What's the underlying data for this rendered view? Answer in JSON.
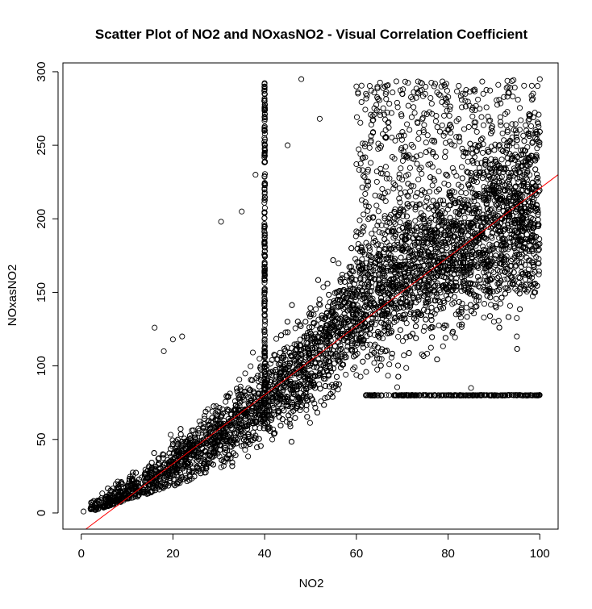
{
  "chart_data": {
    "type": "scatter",
    "title": "Scatter Plot of NO2 and NOxasNO2 - Visual Correlation Coefficient",
    "xlabel": "NO2",
    "ylabel": "NOxasNO2",
    "xlim": [
      -4,
      104
    ],
    "ylim": [
      -11,
      306
    ],
    "xticks": [
      0,
      20,
      40,
      60,
      80,
      100
    ],
    "yticks": [
      0,
      50,
      100,
      150,
      200,
      250,
      300
    ],
    "grid": false,
    "legend": "none",
    "point_color": "#000000",
    "fit_line": {
      "color": "#ff0000",
      "from": [
        1,
        -11
      ],
      "to": [
        104,
        230
      ]
    },
    "features": {
      "main_cloud": {
        "x_range": [
          2,
          100
        ],
        "y_min": 2,
        "y_max": 295
      },
      "vertical_band": {
        "x": 40,
        "y_range": [
          60,
          295
        ]
      },
      "horizontal_band": {
        "y": 80,
        "x_range": [
          62,
          100
        ]
      }
    },
    "sample_points": [
      [
        0.5,
        1
      ],
      [
        30.5,
        198
      ],
      [
        16,
        126
      ],
      [
        22,
        120
      ],
      [
        20,
        118
      ],
      [
        18,
        110
      ],
      [
        48,
        295
      ],
      [
        100,
        295
      ],
      [
        95,
        120
      ],
      [
        85,
        85
      ],
      [
        90,
        130
      ],
      [
        99,
        150
      ],
      [
        60,
        290
      ],
      [
        70,
        285
      ],
      [
        52,
        268
      ],
      [
        45,
        250
      ],
      [
        38,
        230
      ],
      [
        35,
        205
      ]
    ]
  }
}
